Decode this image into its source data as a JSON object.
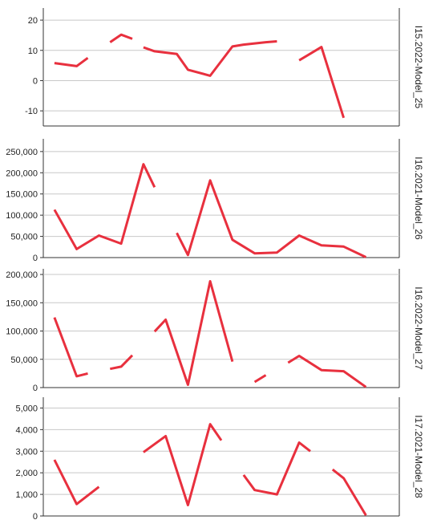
{
  "chart_data": {
    "type": "line",
    "x_count": 16,
    "line_color": "#e8303e",
    "grid": true,
    "panels": [
      {
        "label": "I15.2022-Model_25",
        "ylim": [
          -15,
          24
        ],
        "ticks": [
          -10,
          0,
          10,
          20
        ],
        "tick_labels": [
          "-10",
          "0",
          "10",
          "20"
        ],
        "values": [
          5.8,
          4.8,
          7.5,
          12.7,
          15.2,
          13.8,
          11.0,
          9.7,
          8.8,
          3.6,
          1.6,
          11.3,
          11.9,
          12.7,
          13.0,
          6.7,
          11.1,
          -12.3
        ],
        "segments": [
          [
            0,
            2
          ],
          [
            3,
            5
          ],
          [
            6,
            14
          ],
          [
            15,
            17
          ]
        ],
        "x_positions": [
          1,
          2,
          2.5,
          3.5,
          4,
          4.5,
          5,
          5.5,
          6.5,
          7,
          8,
          9,
          9.5,
          10.5,
          11,
          12,
          13,
          14
        ]
      },
      {
        "label": "I16.2021-Model_26",
        "ylim": [
          0,
          280000
        ],
        "ticks": [
          0,
          50000,
          100000,
          150000,
          200000,
          250000
        ],
        "tick_labels": [
          "0",
          "50,000",
          "100,000",
          "150,000",
          "200,000",
          "250,000"
        ],
        "values": [
          113000,
          20000,
          52000,
          33000,
          220000,
          166000,
          58000,
          6000,
          182000,
          42000,
          10000,
          12000,
          52000,
          29000,
          26000,
          1000
        ],
        "segments": [
          [
            0,
            5
          ],
          [
            6,
            15
          ]
        ],
        "x_positions": [
          1,
          2,
          3,
          4,
          5,
          5.5,
          6.5,
          7,
          8,
          9,
          10,
          11,
          12,
          13,
          14,
          15
        ]
      },
      {
        "label": "I16.2022-Model_27",
        "ylim": [
          0,
          210000
        ],
        "ticks": [
          0,
          50000,
          100000,
          150000,
          200000
        ],
        "tick_labels": [
          "0",
          "50,000",
          "100,000",
          "150,000",
          "200,000"
        ],
        "values": [
          124000,
          20000,
          25000,
          33000,
          37000,
          57000,
          99000,
          120000,
          5000,
          188000,
          46000,
          10000,
          22000,
          44000,
          56000,
          31000,
          29000,
          1000
        ],
        "segments": [
          [
            0,
            2
          ],
          [
            3,
            5
          ],
          [
            6,
            10
          ],
          [
            11,
            12
          ],
          [
            13,
            17
          ]
        ],
        "x_positions": [
          1,
          2,
          2.5,
          3.5,
          4,
          4.5,
          5.5,
          6,
          7,
          8,
          9,
          10,
          10.5,
          11.5,
          12,
          13,
          14,
          15
        ]
      },
      {
        "label": "I17.2021-Model_28",
        "ylim": [
          0,
          5500
        ],
        "ticks": [
          0,
          1000,
          2000,
          3000,
          4000,
          5000
        ],
        "tick_labels": [
          "0",
          "1,000",
          "2,000",
          "3,000",
          "4,000",
          "5,000"
        ],
        "values": [
          2600,
          550,
          1350,
          2950,
          3700,
          500,
          4250,
          3500,
          1900,
          1200,
          1000,
          3400,
          3000,
          2150,
          1750,
          30
        ],
        "segments": [
          [
            0,
            2
          ],
          [
            3,
            7
          ],
          [
            8,
            12
          ],
          [
            13,
            15
          ]
        ],
        "x_positions": [
          1,
          2,
          3,
          5,
          6,
          7,
          8,
          8.5,
          9.5,
          10,
          11,
          12,
          12.5,
          13.5,
          14,
          15
        ]
      }
    ]
  }
}
